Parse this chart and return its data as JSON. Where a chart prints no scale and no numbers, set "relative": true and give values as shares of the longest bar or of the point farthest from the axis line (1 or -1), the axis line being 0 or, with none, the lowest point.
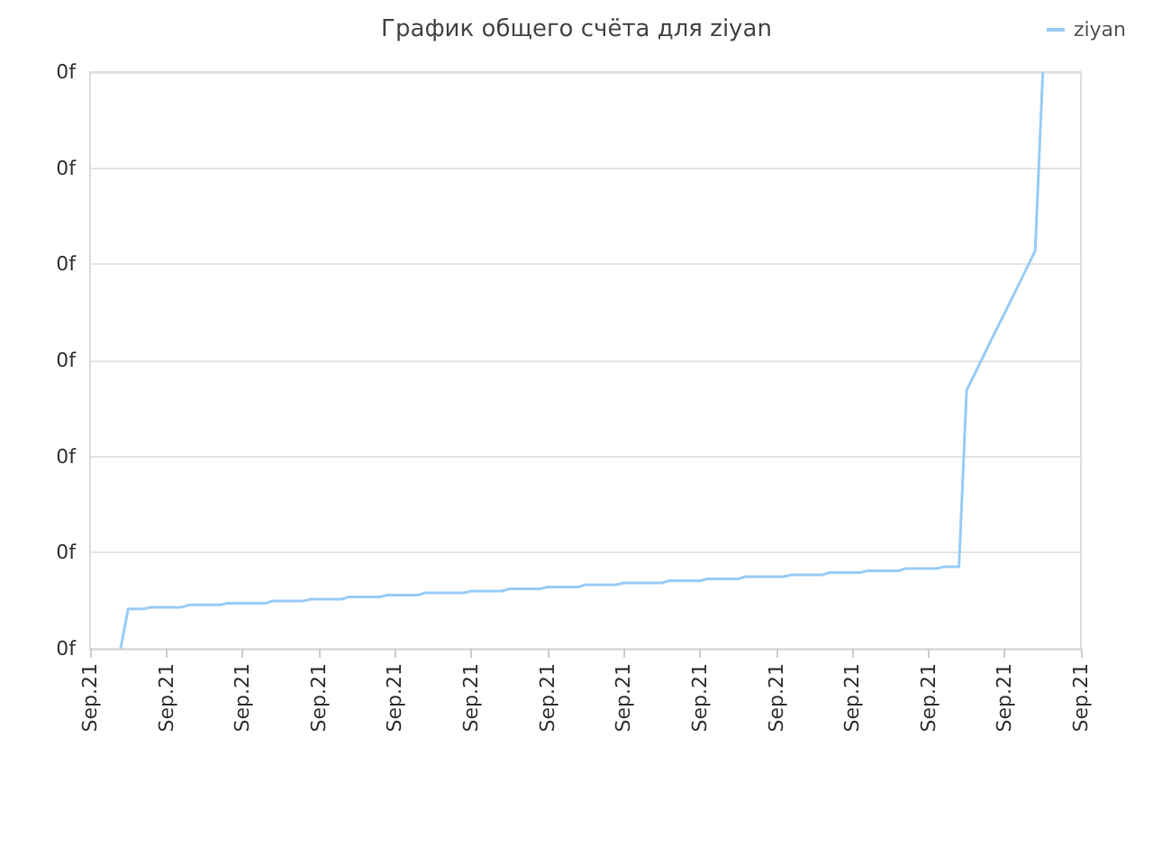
{
  "chart_data": {
    "type": "line",
    "title": "График общего счёта для ziyan",
    "relative": true,
    "annotations": [
      "0f",
      "0f",
      "0f",
      "0f",
      "0f",
      "0f",
      "0f"
    ],
    "categories": [
      "Sep.21",
      null,
      null,
      null,
      null,
      null,
      null,
      null,
      null,
      null,
      "Sep.21",
      null,
      null,
      null,
      null,
      null,
      null,
      null,
      null,
      null,
      "Sep.21",
      null,
      null,
      null,
      null,
      null,
      null,
      null,
      null,
      null,
      "Sep.21",
      null,
      null,
      null,
      null,
      null,
      null,
      null,
      null,
      null,
      "Sep.21",
      null,
      null,
      null,
      null,
      null,
      null,
      null,
      null,
      null,
      "Sep.21",
      null,
      null,
      null,
      null,
      null,
      null,
      null,
      null,
      null,
      "Sep.21",
      null,
      null,
      null,
      null,
      null,
      null,
      null,
      null,
      null,
      "Sep.21",
      null,
      null,
      null,
      null,
      null,
      null,
      null,
      null,
      null,
      "Sep.21",
      null,
      null,
      null,
      null,
      null,
      null,
      null,
      null,
      null,
      "Sep.21",
      null,
      null,
      null,
      null,
      null,
      null,
      null,
      null,
      null,
      "Sep.21",
      null,
      null,
      null,
      null,
      null,
      null,
      null,
      null,
      null,
      "Sep.21",
      null,
      null,
      null,
      null,
      null,
      null,
      null,
      null,
      null,
      "Sep.21",
      null,
      null,
      null,
      null,
      null,
      null,
      null,
      null,
      null,
      "Sep.21"
    ],
    "grid": "y",
    "legend": "top right",
    "marker": "none",
    "line_style": "solid",
    "series": [
      {
        "name": "ziyan",
        "color": "#99ccf5",
        "values": [
          null,
          null,
          null,
          null,
          0,
          0.069,
          0.069,
          0.069,
          0.072,
          0.072,
          0.072,
          0.072,
          0.072,
          0.076,
          0.076,
          0.076,
          0.076,
          0.076,
          0.079,
          0.079,
          0.079,
          0.079,
          0.079,
          0.079,
          0.083,
          0.083,
          0.083,
          0.083,
          0.083,
          0.086,
          0.086,
          0.086,
          0.086,
          0.086,
          0.09,
          0.09,
          0.09,
          0.09,
          0.09,
          0.093,
          0.093,
          0.093,
          0.093,
          0.093,
          0.097,
          0.097,
          0.097,
          0.097,
          0.097,
          0.097,
          0.1,
          0.1,
          0.1,
          0.1,
          0.1,
          0.104,
          0.104,
          0.104,
          0.104,
          0.104,
          0.107,
          0.107,
          0.107,
          0.107,
          0.107,
          0.111,
          0.111,
          0.111,
          0.111,
          0.111,
          0.114,
          0.114,
          0.114,
          0.114,
          0.114,
          0.114,
          0.118,
          0.118,
          0.118,
          0.118,
          0.118,
          0.121,
          0.121,
          0.121,
          0.121,
          0.121,
          0.125,
          0.125,
          0.125,
          0.125,
          0.125,
          0.125,
          0.128,
          0.128,
          0.128,
          0.128,
          0.128,
          0.132,
          0.132,
          0.132,
          0.132,
          0.132,
          0.135,
          0.135,
          0.135,
          0.135,
          0.135,
          0.139,
          0.139,
          0.139,
          0.139,
          0.139,
          0.142,
          0.142,
          0.142,
          0.448,
          0.475,
          0.502,
          0.529,
          0.556,
          0.582,
          0.609,
          0.636,
          0.663,
          0.69,
          1,
          null,
          null,
          null,
          null,
          null
        ]
      }
    ]
  }
}
